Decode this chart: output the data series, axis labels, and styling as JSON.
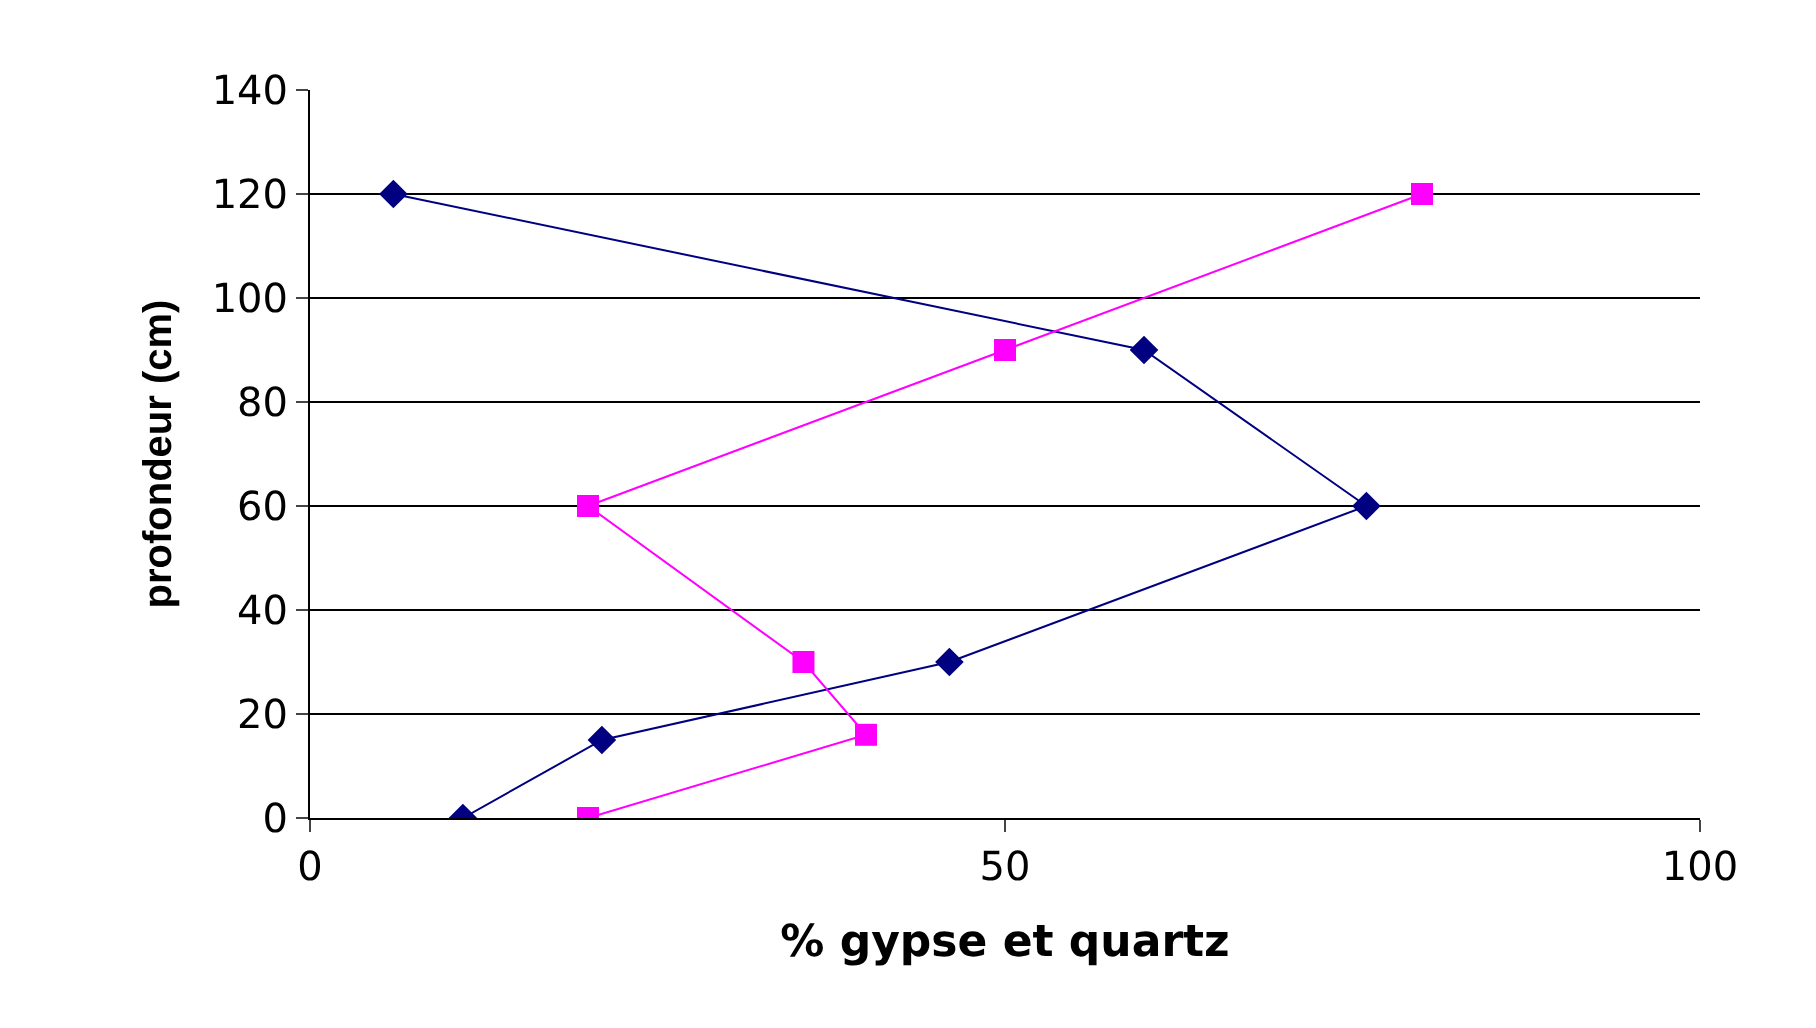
{
  "chart_data": {
    "type": "line",
    "xlabel": "% gypse et quartz",
    "ylabel": "profondeur (cm)",
    "xlim": [
      0,
      100
    ],
    "xticks": [
      0,
      50,
      100
    ],
    "ylim": [
      0,
      140
    ],
    "yticks": [
      0,
      20,
      40,
      60,
      80,
      100,
      120,
      140
    ],
    "grid": "y",
    "series": [
      {
        "color": "#000080",
        "marker": "diamond",
        "x": [
          6,
          60,
          76,
          46,
          21,
          11
        ],
        "values": [
          120,
          90,
          60,
          30,
          15,
          0
        ]
      },
      {
        "color": "#ff00ff",
        "marker": "square",
        "x": [
          80,
          50,
          20,
          35.5,
          40,
          20
        ],
        "values": [
          120,
          90,
          60,
          30,
          16,
          0
        ]
      }
    ]
  }
}
